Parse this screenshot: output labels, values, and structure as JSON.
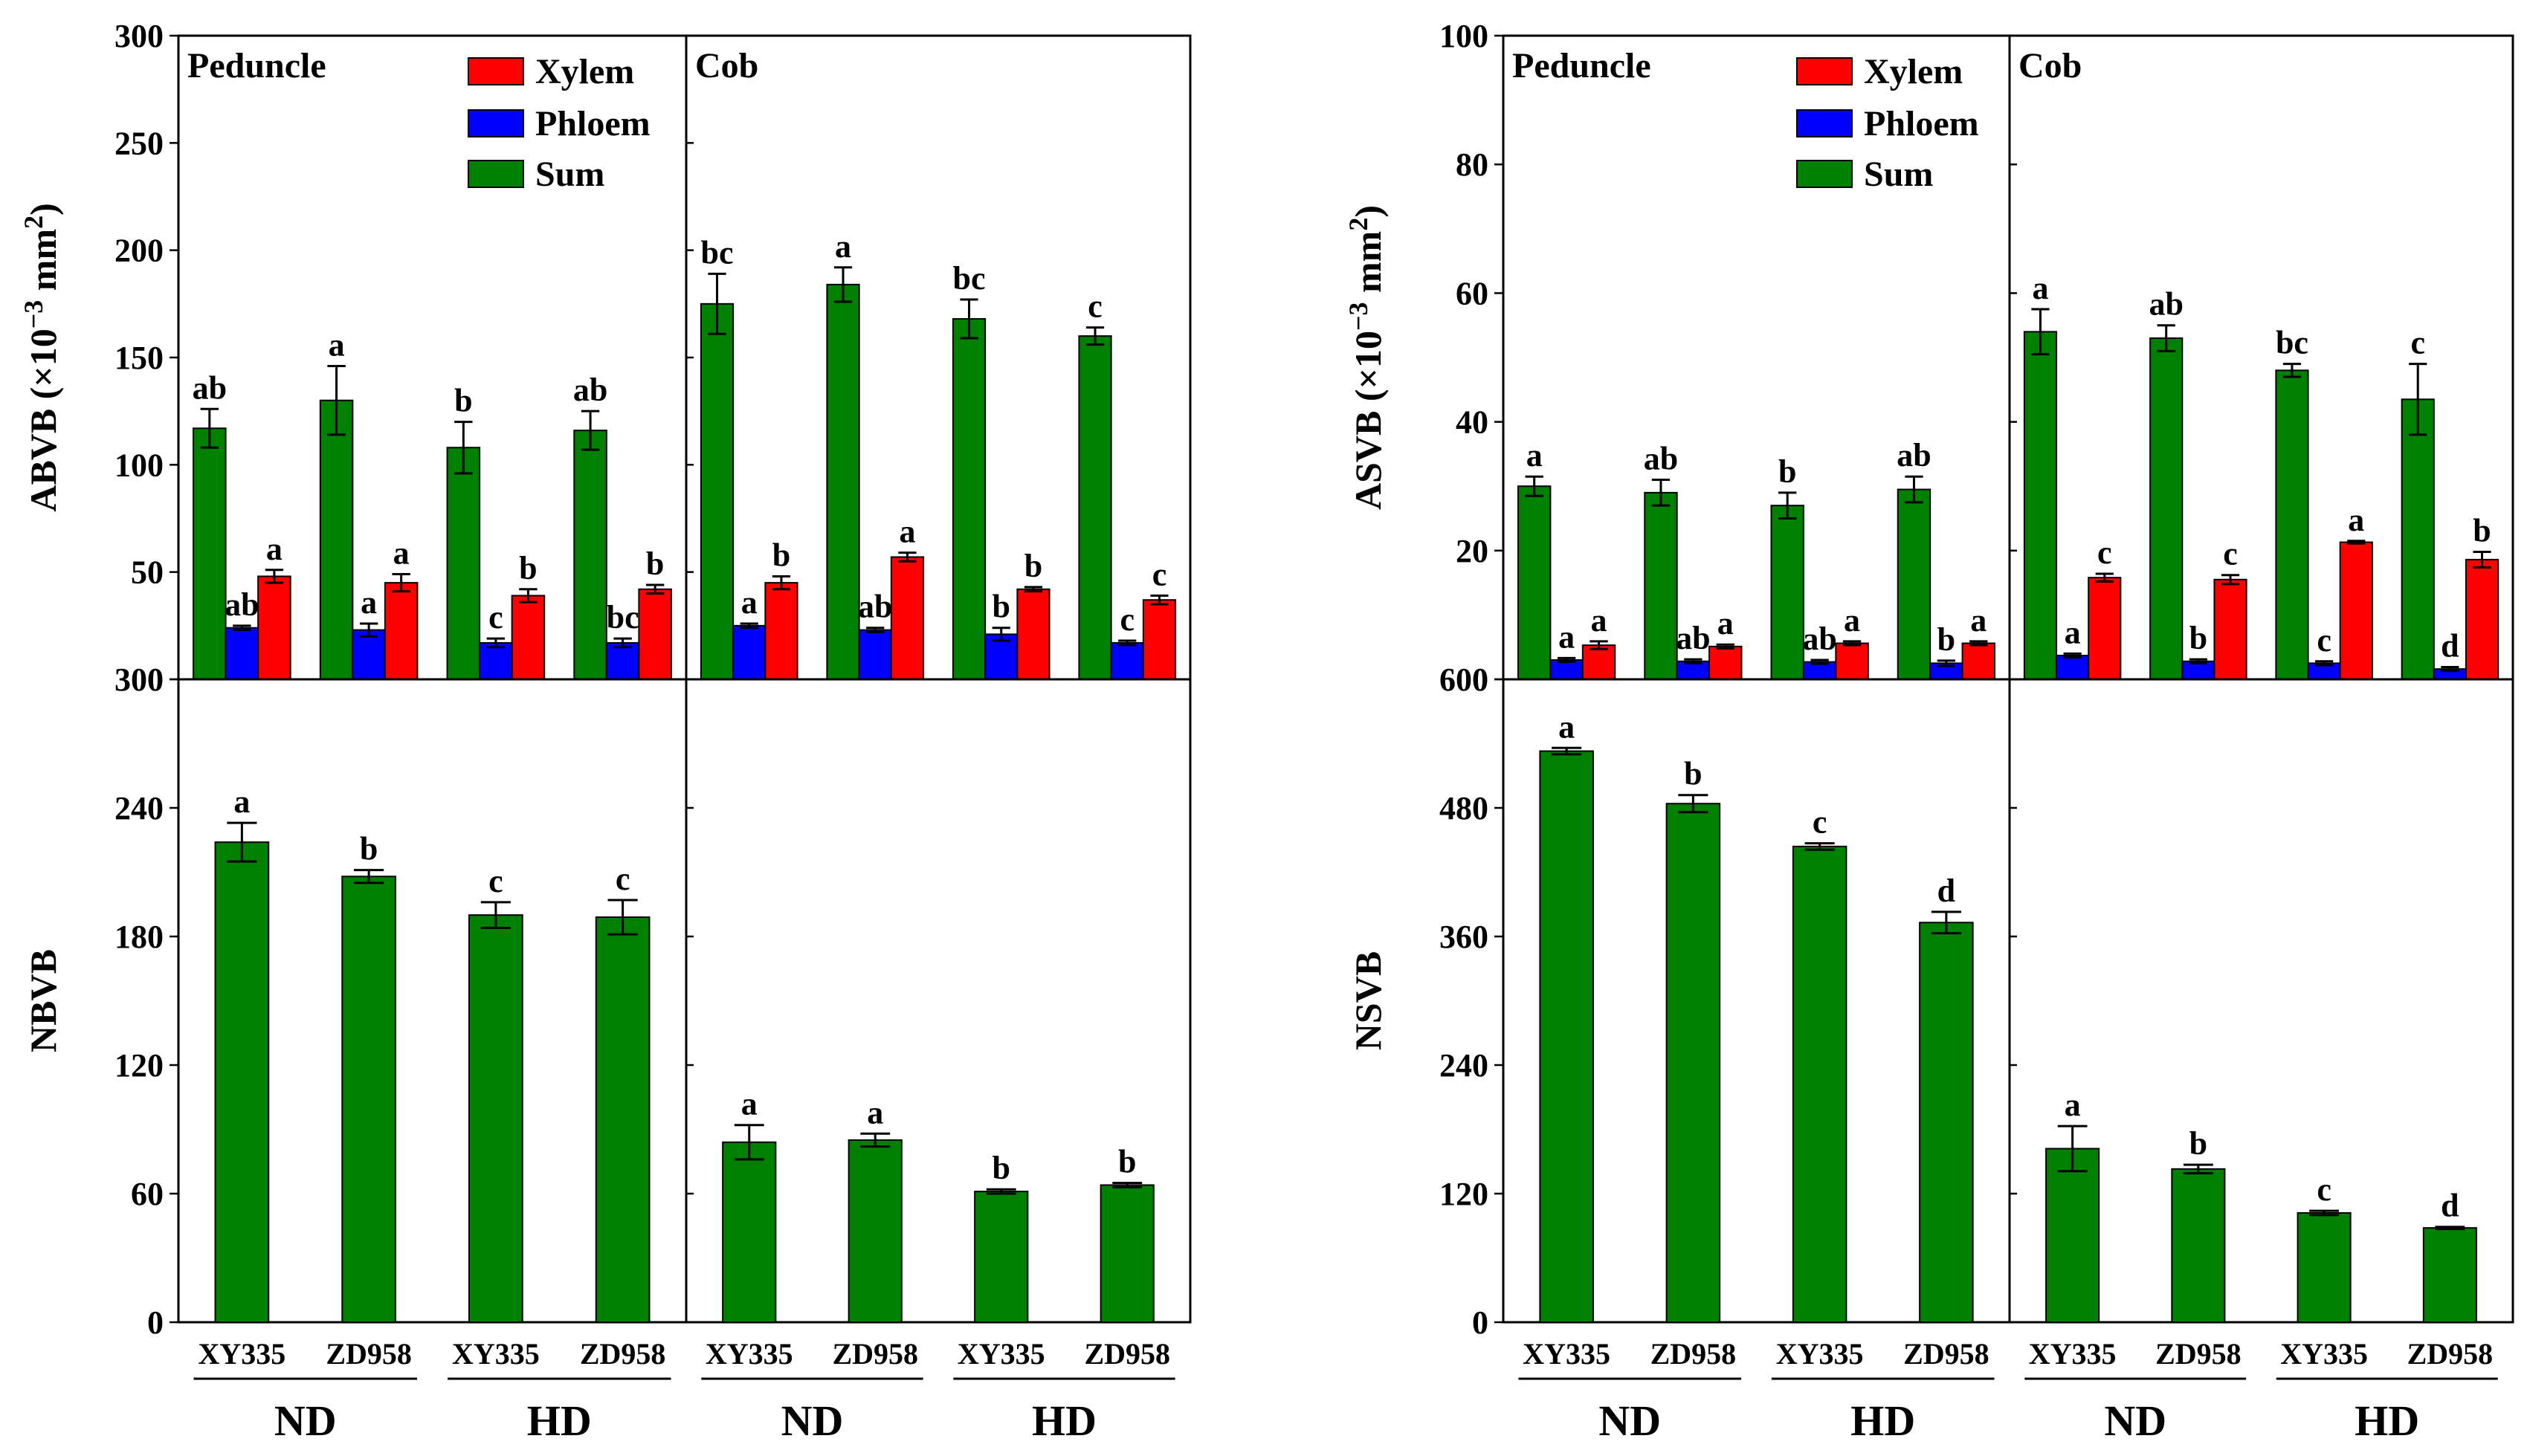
{
  "colors": {
    "xylem": "#ff0000",
    "phloem": "#0000ff",
    "sum": "#008000"
  },
  "legend": {
    "xylem": "Xylem",
    "phloem": "Phloem",
    "sum": "Sum"
  },
  "chart_data": [
    {
      "id": "abvb",
      "type": "bar",
      "layout": "three",
      "ylabel": "ABVB (×10−3 mm²)",
      "ylabel_main": "ABVB (×10",
      "ylabel_exp": "−3",
      "ylabel_unit": " mm",
      "ylabel_sup2": "2",
      "ylabel_close": ")",
      "ylim": [
        0,
        300
      ],
      "yticks": [
        "0",
        "50",
        "100",
        "150",
        "200",
        "250",
        "300"
      ],
      "panels": [
        {
          "title": "Peduncle",
          "categories": [
            "XY335",
            "ZD958",
            "XY335",
            "ZD958"
          ],
          "series": [
            {
              "name": "Sum",
              "values": [
                117,
                130,
                108,
                116
              ],
              "errors": [
                9,
                16,
                12,
                9
              ],
              "letters": [
                "ab",
                "a",
                "b",
                "ab"
              ]
            },
            {
              "name": "Phloem",
              "values": [
                24,
                23,
                17,
                17
              ],
              "errors": [
                1,
                3,
                2,
                2
              ],
              "letters": [
                "ab",
                "a",
                "c",
                "bc"
              ]
            },
            {
              "name": "Xylem",
              "values": [
                48,
                45,
                39,
                42
              ],
              "errors": [
                3,
                4,
                3,
                2
              ],
              "letters": [
                "a",
                "a",
                "b",
                "b"
              ]
            }
          ]
        },
        {
          "title": "Cob",
          "categories": [
            "XY335",
            "ZD958",
            "XY335",
            "ZD958"
          ],
          "series": [
            {
              "name": "Sum",
              "values": [
                175,
                184,
                168,
                160
              ],
              "errors": [
                14,
                8,
                9,
                4
              ],
              "letters": [
                "bc",
                "a",
                "bc",
                "c"
              ]
            },
            {
              "name": "Phloem",
              "values": [
                25,
                23,
                21,
                17
              ],
              "errors": [
                1,
                1,
                3,
                1
              ],
              "letters": [
                "a",
                "ab",
                "b",
                "c"
              ]
            },
            {
              "name": "Xylem",
              "values": [
                45,
                57,
                42,
                37
              ],
              "errors": [
                3,
                2,
                1,
                2
              ],
              "letters": [
                "b",
                "a",
                "b",
                "c"
              ]
            }
          ]
        }
      ]
    },
    {
      "id": "nbvb",
      "type": "bar",
      "layout": "single",
      "ylabel": "NBVB",
      "ylim": [
        0,
        300
      ],
      "yticks": [
        "0",
        "60",
        "120",
        "180",
        "240",
        "300"
      ],
      "panels": [
        {
          "title": "",
          "categories": [
            "XY335",
            "ZD958",
            "XY335",
            "ZD958"
          ],
          "series": [
            {
              "name": "Sum",
              "values": [
                224,
                208,
                190,
                189
              ],
              "errors": [
                9,
                3,
                6,
                8
              ],
              "letters": [
                "a",
                "b",
                "c",
                "c"
              ]
            }
          ]
        },
        {
          "title": "",
          "categories": [
            "XY335",
            "ZD958",
            "XY335",
            "ZD958"
          ],
          "series": [
            {
              "name": "Sum",
              "values": [
                84,
                85,
                61,
                64
              ],
              "errors": [
                8,
                3,
                1,
                1
              ],
              "letters": [
                "a",
                "a",
                "b",
                "b"
              ]
            }
          ]
        }
      ],
      "groups": [
        "ND",
        "HD",
        "ND",
        "HD"
      ]
    },
    {
      "id": "asvb",
      "type": "bar",
      "layout": "three",
      "ylabel": "ASVB (×10−3 mm²)",
      "ylabel_main": "ASVB (×10",
      "ylabel_exp": "−3",
      "ylabel_unit": " mm",
      "ylabel_sup2": "2",
      "ylabel_close": ")",
      "ylim": [
        0,
        100
      ],
      "yticks": [
        "0",
        "20",
        "40",
        "60",
        "80",
        "100"
      ],
      "panels": [
        {
          "title": "Peduncle",
          "categories": [
            "XY335",
            "ZD958",
            "XY335",
            "ZD958"
          ],
          "series": [
            {
              "name": "Sum",
              "values": [
                30,
                29,
                27,
                29.5
              ],
              "errors": [
                1.5,
                2,
                2,
                2
              ],
              "letters": [
                "a",
                "ab",
                "b",
                "ab"
              ]
            },
            {
              "name": "Phloem",
              "values": [
                3,
                2.8,
                2.7,
                2.5
              ],
              "errors": [
                0.3,
                0.3,
                0.3,
                0.4
              ],
              "letters": [
                "a",
                "ab",
                "ab",
                "b"
              ]
            },
            {
              "name": "Xylem",
              "values": [
                5.3,
                5.1,
                5.6,
                5.6
              ],
              "errors": [
                0.6,
                0.3,
                0.3,
                0.3
              ],
              "letters": [
                "a",
                "a",
                "a",
                "a"
              ]
            }
          ]
        },
        {
          "title": "Cob",
          "categories": [
            "XY335",
            "ZD958",
            "XY335",
            "ZD958"
          ],
          "series": [
            {
              "name": "Sum",
              "values": [
                54,
                53,
                48,
                43.5
              ],
              "errors": [
                3.5,
                2,
                1,
                5.5
              ],
              "letters": [
                "a",
                "ab",
                "bc",
                "c"
              ]
            },
            {
              "name": "Phloem",
              "values": [
                3.7,
                2.8,
                2.5,
                1.6
              ],
              "errors": [
                0.3,
                0.3,
                0.3,
                0.3
              ],
              "letters": [
                "a",
                "b",
                "c",
                "d"
              ]
            },
            {
              "name": "Xylem",
              "values": [
                15.8,
                15.5,
                21.3,
                18.6
              ],
              "errors": [
                0.6,
                0.7,
                0.2,
                1.2
              ],
              "letters": [
                "c",
                "c",
                "a",
                "b"
              ]
            }
          ]
        }
      ]
    },
    {
      "id": "nsvb",
      "type": "bar",
      "layout": "single",
      "ylabel": "NSVB",
      "ylim": [
        0,
        600
      ],
      "yticks": [
        "0",
        "120",
        "240",
        "360",
        "480",
        "600"
      ],
      "panels": [
        {
          "title": "",
          "categories": [
            "XY335",
            "ZD958",
            "XY335",
            "ZD958"
          ],
          "series": [
            {
              "name": "Sum",
              "values": [
                533,
                484,
                444,
                373
              ],
              "errors": [
                3,
                8,
                3,
                10
              ],
              "letters": [
                "a",
                "b",
                "c",
                "d"
              ]
            }
          ]
        },
        {
          "title": "",
          "categories": [
            "XY335",
            "ZD958",
            "XY335",
            "ZD958"
          ],
          "series": [
            {
              "name": "Sum",
              "values": [
                162,
                143,
                102,
                88
              ],
              "errors": [
                21,
                4,
                2,
                1
              ],
              "letters": [
                "a",
                "b",
                "c",
                "d"
              ]
            }
          ]
        }
      ],
      "groups": [
        "ND",
        "HD",
        "ND",
        "HD"
      ]
    }
  ]
}
